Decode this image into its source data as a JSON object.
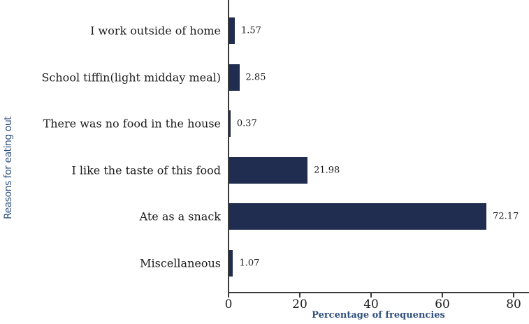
{
  "chart_data": {
    "type": "bar",
    "orientation": "horizontal",
    "title": "",
    "xlabel": "Percentage of frequencies",
    "ylabel": "Reasons for eating out",
    "categories": [
      "I work outside of home",
      "School tiffin(light midday meal)",
      "There was no food in the house",
      "I like the taste of this food",
      "Ate as a snack",
      "Miscellaneous"
    ],
    "values": [
      1.57,
      2.85,
      0.37,
      21.98,
      72.17,
      1.07
    ],
    "value_labels": [
      "1.57",
      "2.85",
      "0.37",
      "21.98",
      "72.17",
      "1.07"
    ],
    "xticks": [
      0,
      20,
      40,
      60,
      80
    ],
    "xtick_labels": [
      "0",
      "20",
      "40",
      "60",
      "80"
    ],
    "xlim": [
      0,
      84.5
    ],
    "grid": false,
    "legend": null,
    "colors": {
      "bar": "#202d50",
      "axis": "#3a3a3a",
      "tick_label": "#1c1c1c",
      "category_label": "#1c1c1c",
      "value_label": "#1c1c1c",
      "axis_title": "#31517e"
    }
  }
}
